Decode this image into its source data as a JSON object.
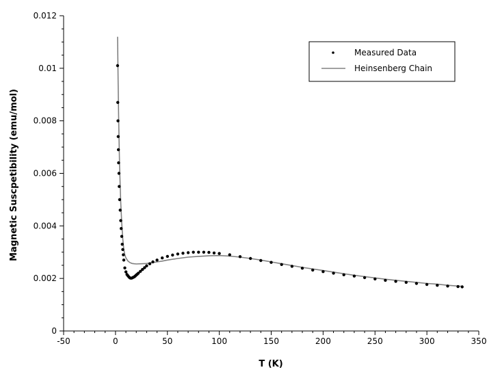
{
  "chart_data": {
    "type": "scatter",
    "title": "",
    "xlabel": "T (K)",
    "ylabel": "Magnetic Suscpetibility (emu/mol)",
    "xlim": [
      -50,
      350
    ],
    "ylim": [
      0,
      0.012
    ],
    "x_ticks": [
      -50,
      0,
      50,
      100,
      150,
      200,
      250,
      300,
      350
    ],
    "x_tick_labels": [
      "-50",
      "0",
      "50",
      "100",
      "150",
      "200",
      "250",
      "300",
      "350"
    ],
    "y_ticks": [
      0,
      0.002,
      0.004,
      0.006,
      0.008,
      0.01,
      0.012
    ],
    "y_tick_labels": [
      "0",
      "0.002",
      "0.004",
      "0.006",
      "0.008",
      "0.01",
      "0.012"
    ],
    "grid": false,
    "legend": {
      "position": "top-right",
      "entries": [
        "Measured Data",
        "Heinsenberg Chain"
      ]
    },
    "colors": {
      "measured": "#000000",
      "fit": "#808080"
    },
    "series": [
      {
        "name": "Measured Data",
        "style": "markers",
        "x": [
          2,
          2.2,
          2.4,
          2.6,
          2.8,
          3,
          3.3,
          3.6,
          4,
          4.5,
          5,
          5.5,
          6,
          6.5,
          7,
          7.5,
          8,
          9,
          10,
          11,
          12,
          13,
          14,
          15,
          16,
          17,
          18,
          19,
          20,
          21,
          22,
          24,
          26,
          28,
          30,
          33,
          36,
          40,
          45,
          50,
          55,
          60,
          65,
          70,
          75,
          80,
          85,
          90,
          95,
          100,
          110,
          120,
          130,
          140,
          150,
          160,
          170,
          180,
          190,
          200,
          210,
          220,
          230,
          240,
          250,
          260,
          270,
          280,
          290,
          300,
          310,
          320,
          330,
          334
        ],
        "y": [
          0.0101,
          0.0087,
          0.008,
          0.0074,
          0.0069,
          0.0064,
          0.006,
          0.0055,
          0.005,
          0.0046,
          0.0042,
          0.0039,
          0.0036,
          0.0033,
          0.0031,
          0.0029,
          0.0027,
          0.0024,
          0.00225,
          0.00215,
          0.0021,
          0.00205,
          0.00202,
          0.00201,
          0.00202,
          0.00204,
          0.00206,
          0.00209,
          0.00213,
          0.00216,
          0.0022,
          0.00227,
          0.00234,
          0.00241,
          0.00248,
          0.00256,
          0.00263,
          0.0027,
          0.00278,
          0.00284,
          0.00289,
          0.00293,
          0.00296,
          0.00298,
          0.003,
          0.003,
          0.003,
          0.00299,
          0.00297,
          0.00295,
          0.0029,
          0.00283,
          0.00276,
          0.00268,
          0.00261,
          0.00253,
          0.00246,
          0.00239,
          0.00232,
          0.00226,
          0.0022,
          0.00214,
          0.00209,
          0.00203,
          0.00198,
          0.00193,
          0.00189,
          0.00185,
          0.00181,
          0.00177,
          0.00174,
          0.00171,
          0.00169,
          0.00168
        ]
      },
      {
        "name": "Heinsenberg Chain",
        "style": "line",
        "x": [
          2,
          2.5,
          3,
          3.5,
          4,
          5,
          6,
          7,
          8,
          9,
          10,
          12,
          14,
          16,
          18,
          20,
          25,
          30,
          35,
          40,
          45,
          50,
          60,
          70,
          80,
          90,
          100,
          110,
          120,
          130,
          140,
          150,
          160,
          170,
          180,
          190,
          200,
          210,
          220,
          230,
          240,
          250,
          260,
          270,
          280,
          290,
          300,
          310,
          320,
          330,
          334
        ],
        "y": [
          0.0112,
          0.0095,
          0.0082,
          0.0071,
          0.0062,
          0.0049,
          0.0041,
          0.0035,
          0.0031,
          0.0029,
          0.00278,
          0.00266,
          0.0026,
          0.00257,
          0.00256,
          0.00255,
          0.00256,
          0.00257,
          0.0026,
          0.00263,
          0.00266,
          0.0027,
          0.00276,
          0.00281,
          0.00284,
          0.00286,
          0.00287,
          0.00285,
          0.00281,
          0.00276,
          0.0027,
          0.00263,
          0.00256,
          0.00249,
          0.00242,
          0.00236,
          0.0023,
          0.00224,
          0.00218,
          0.00212,
          0.00207,
          0.00202,
          0.00197,
          0.00193,
          0.00189,
          0.00185,
          0.00181,
          0.00178,
          0.00174,
          0.00171,
          0.0017
        ]
      }
    ]
  }
}
